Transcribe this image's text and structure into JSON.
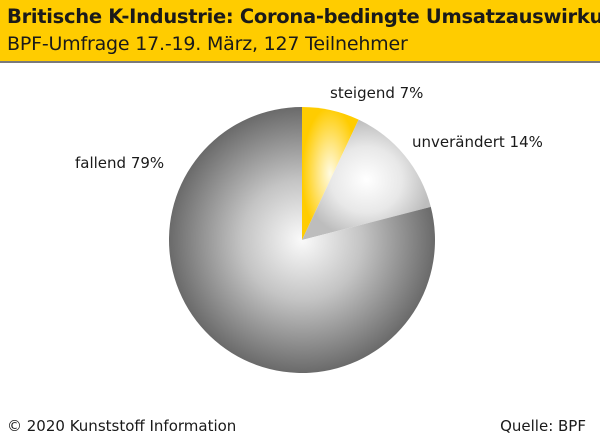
{
  "header": {
    "title": "Britische K-Industrie: Corona-bedingte Umsatzauswirkung",
    "subtitle": "BPF-Umfrage 17.-19. März, 127 Teilnehmer"
  },
  "chart_data": {
    "type": "pie",
    "title": "Britische K-Industrie: Corona-bedingte Umsatzauswirkung",
    "subtitle": "BPF-Umfrage 17.-19. März, 127 Teilnehmer",
    "slices": [
      {
        "label": "steigend",
        "value": 7,
        "display": "steigend 7%",
        "color": "#ffcc00"
      },
      {
        "label": "unverändert",
        "value": 14,
        "display": "unverändert 14%",
        "color": "#c8c8c8"
      },
      {
        "label": "fallend",
        "value": 79,
        "display": "fallend 79%",
        "color": "#6e6e6e"
      }
    ],
    "unit": "%",
    "start_angle": "12 o'clock",
    "direction": "clockwise"
  },
  "footer": {
    "copyright": "© 2020 Kunststoff Information",
    "source": "Quelle: BPF"
  }
}
